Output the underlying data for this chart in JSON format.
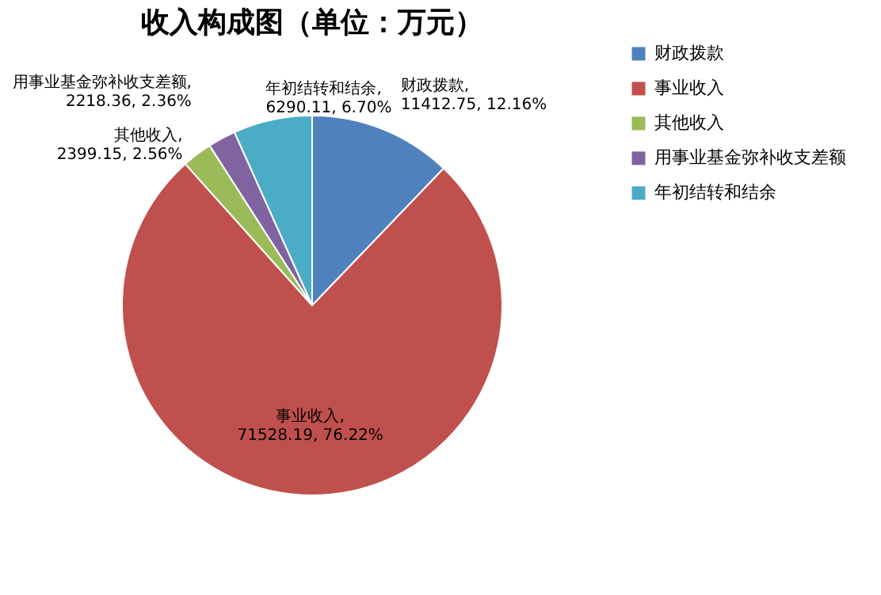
{
  "chart_data": {
    "type": "pie",
    "title": "收入构成图（单位：万元）",
    "categories": [
      "财政拨款",
      "事业收入",
      "其他收入",
      "用事业基金弥补收支差额",
      "年初结转和结余"
    ],
    "values": [
      11412.75,
      71528.19,
      2399.15,
      2218.36,
      6290.11
    ],
    "colors": [
      "#4f81bd",
      "#c0504d",
      "#9bbb59",
      "#8064a2",
      "#4bacc6"
    ],
    "value_labels": [
      "财政拨款, 11412.75, 12.16%",
      "事业收入, 71528.19, 76.22%",
      "其他收入, 2399.15, 2.56%",
      "用事业基金弥补收支差额, 2218.36, 2.36%",
      "年初结转和结余, 6290.11, 6.70%"
    ],
    "legend": "right"
  }
}
